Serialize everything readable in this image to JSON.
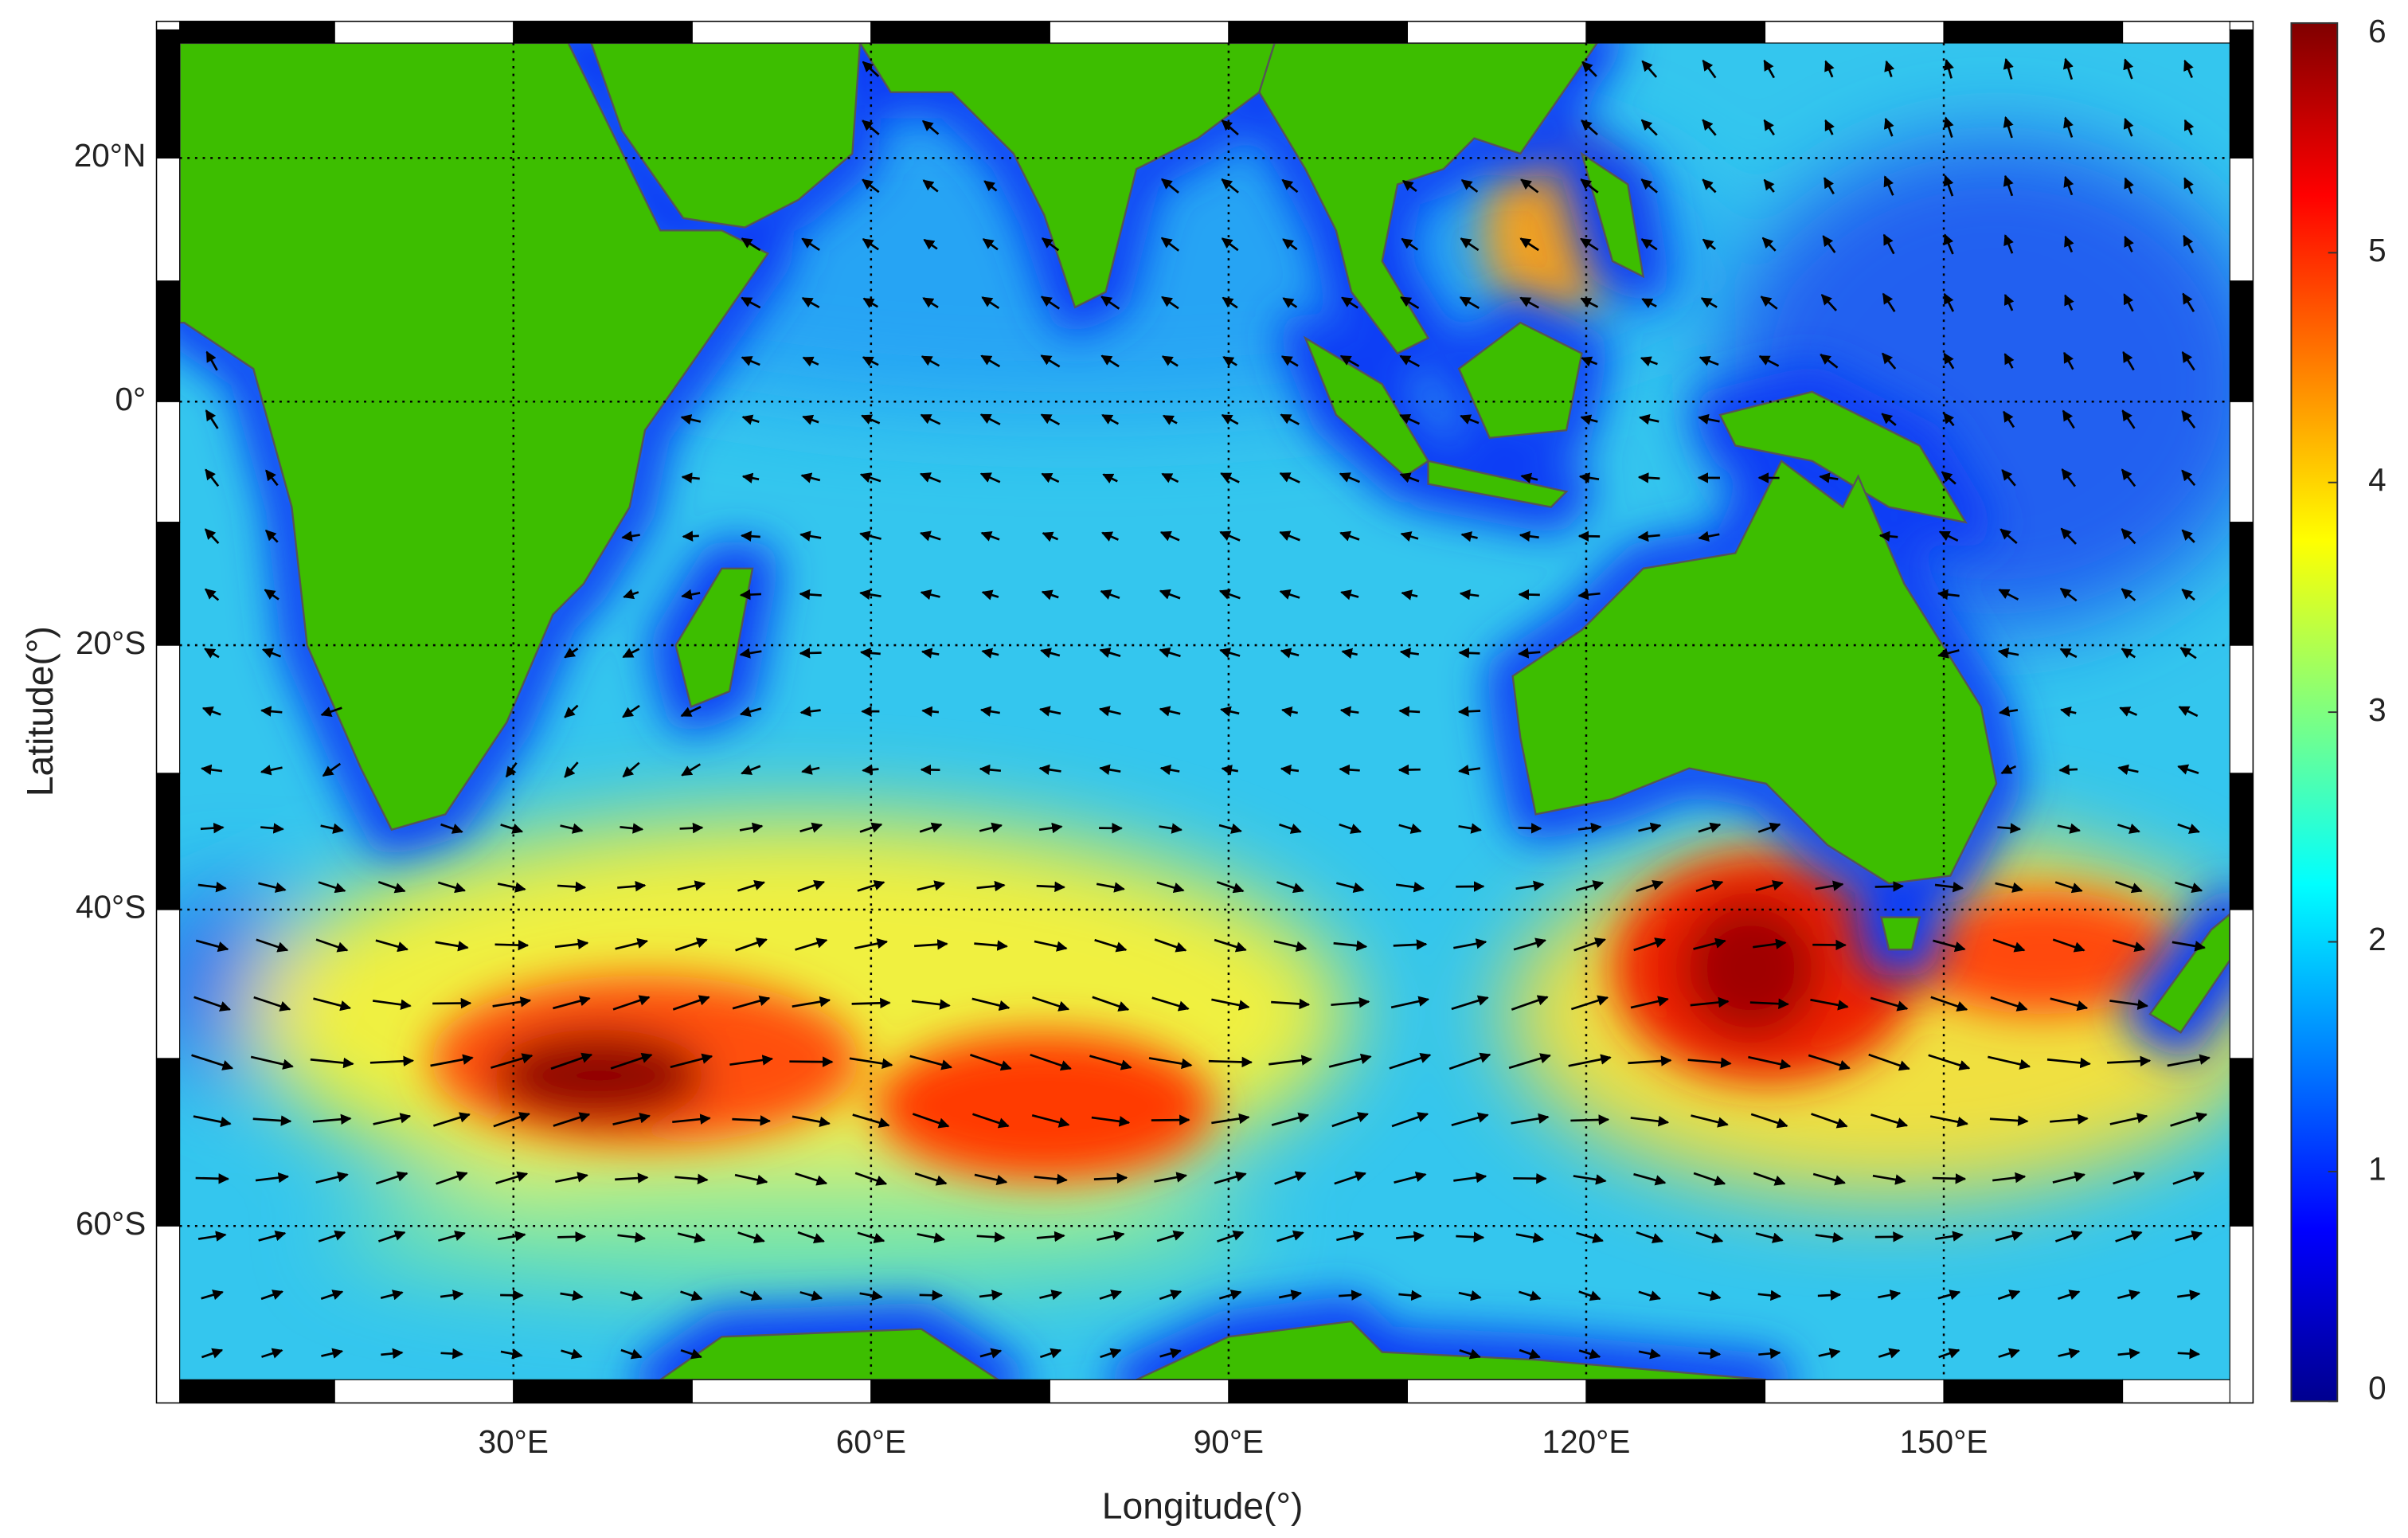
{
  "map": {
    "xlabel": "Longitude(°)",
    "ylabel": "Latitude(°)",
    "projection": "miller",
    "xlim": [
      2,
      174
    ],
    "ylim": [
      -68,
      29
    ],
    "xticks": [
      {
        "value": 30,
        "label": "30°E"
      },
      {
        "value": 60,
        "label": "60°E"
      },
      {
        "value": 90,
        "label": "90°E"
      },
      {
        "value": 120,
        "label": "120°E"
      },
      {
        "value": 150,
        "label": "150°E"
      }
    ],
    "yticks": [
      {
        "value": 20,
        "label": "20°N"
      },
      {
        "value": 0,
        "label": "0°"
      },
      {
        "value": -20,
        "label": "20°S"
      },
      {
        "value": -40,
        "label": "40°S"
      },
      {
        "value": -60,
        "label": "60°S"
      }
    ],
    "grid": true,
    "colorbar": {
      "lim": [
        0,
        6
      ],
      "ticks": [
        0,
        1,
        2,
        3,
        4,
        5,
        6
      ]
    }
  }
}
